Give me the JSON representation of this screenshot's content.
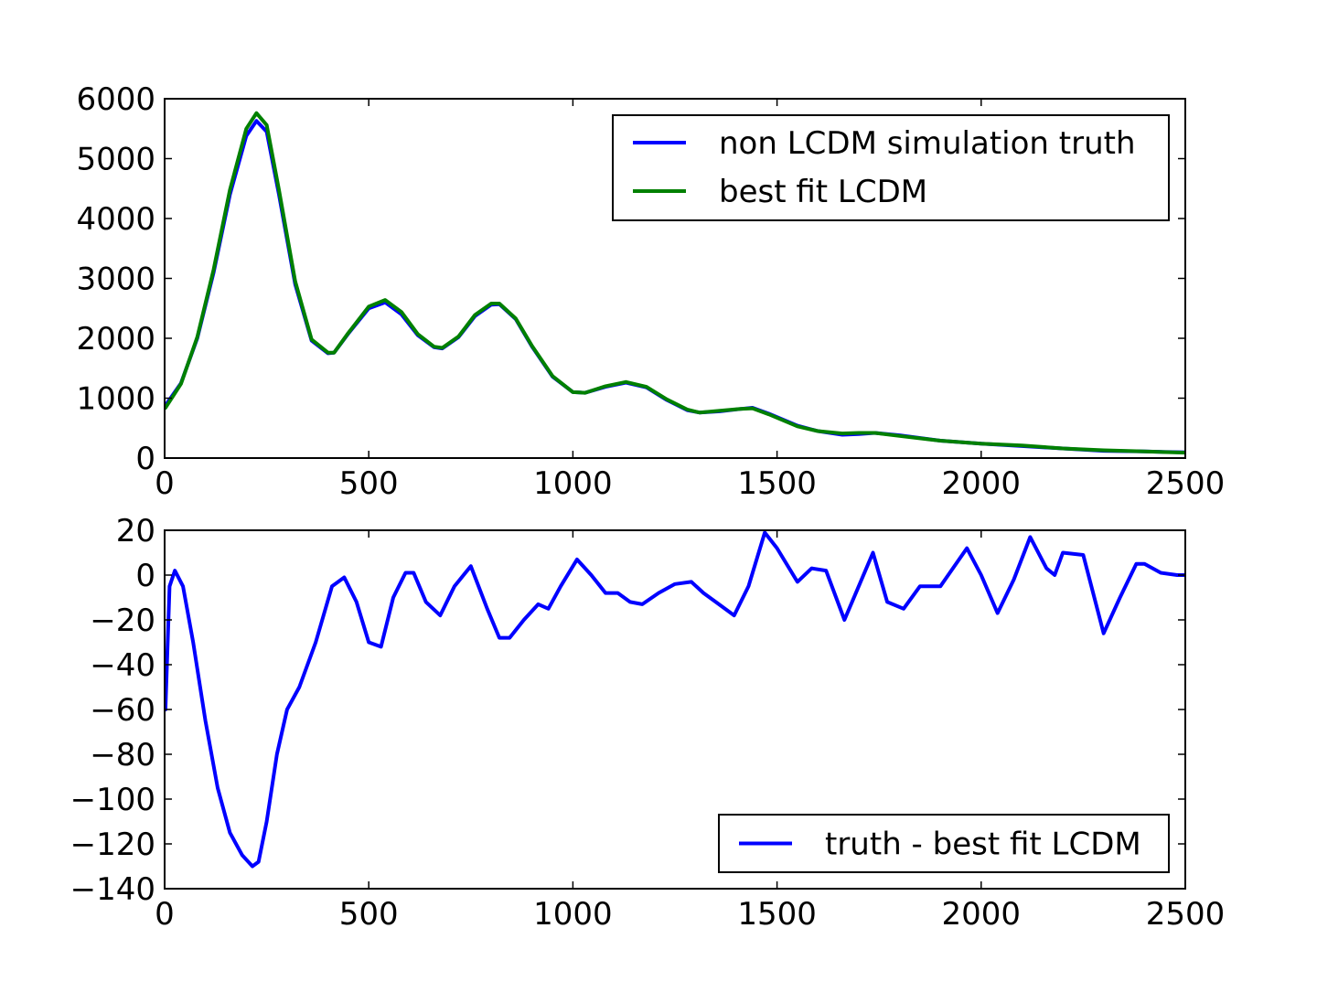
{
  "chart_data": [
    {
      "type": "line",
      "xlim": [
        0,
        2500
      ],
      "ylim": [
        0,
        6000
      ],
      "x_ticks": [
        "0",
        "500",
        "1000",
        "1500",
        "2000",
        "2500"
      ],
      "y_ticks": [
        "0",
        "1000",
        "2000",
        "3000",
        "4000",
        "5000",
        "6000"
      ],
      "grid": false,
      "legend_position": "upper-right",
      "series": [
        {
          "name": "non LCDM simulation truth",
          "color": "#0000ff",
          "x": [
            2,
            40,
            80,
            120,
            160,
            200,
            225,
            250,
            280,
            320,
            360,
            400,
            415,
            450,
            500,
            540,
            580,
            620,
            660,
            680,
            720,
            760,
            800,
            820,
            860,
            900,
            950,
            1000,
            1030,
            1080,
            1130,
            1180,
            1230,
            1280,
            1310,
            1360,
            1410,
            1440,
            1480,
            1550,
            1600,
            1660,
            1700,
            1740,
            1800,
            1900,
            2000,
            2100,
            2200,
            2300,
            2400,
            2500
          ],
          "y": [
            880,
            1250,
            2000,
            3100,
            4400,
            5380,
            5630,
            5450,
            4400,
            2900,
            1960,
            1750,
            1760,
            2080,
            2500,
            2600,
            2400,
            2050,
            1850,
            1830,
            2020,
            2370,
            2560,
            2570,
            2320,
            1860,
            1360,
            1100,
            1090,
            1190,
            1260,
            1180,
            970,
            800,
            760,
            780,
            820,
            840,
            740,
            540,
            450,
            390,
            400,
            420,
            380,
            290,
            240,
            200,
            160,
            120,
            110,
            95
          ]
        },
        {
          "name": "best fit LCDM",
          "color": "#008000",
          "x": [
            2,
            40,
            80,
            120,
            160,
            200,
            225,
            250,
            280,
            320,
            360,
            400,
            415,
            450,
            500,
            540,
            580,
            620,
            660,
            680,
            720,
            760,
            800,
            820,
            860,
            900,
            950,
            1000,
            1030,
            1080,
            1130,
            1180,
            1230,
            1280,
            1310,
            1360,
            1410,
            1440,
            1480,
            1550,
            1600,
            1660,
            1700,
            1740,
            1800,
            1900,
            2000,
            2100,
            2200,
            2300,
            2400,
            2500
          ],
          "y": [
            840,
            1240,
            2020,
            3150,
            4480,
            5500,
            5760,
            5560,
            4480,
            2950,
            1980,
            1760,
            1760,
            2090,
            2530,
            2640,
            2440,
            2070,
            1860,
            1840,
            2030,
            2390,
            2580,
            2580,
            2330,
            1870,
            1370,
            1100,
            1090,
            1200,
            1270,
            1190,
            980,
            810,
            760,
            790,
            820,
            830,
            730,
            530,
            450,
            410,
            420,
            420,
            370,
            290,
            240,
            210,
            160,
            130,
            110,
            90
          ]
        }
      ]
    },
    {
      "type": "line",
      "xlim": [
        0,
        2500
      ],
      "ylim": [
        -140,
        20
      ],
      "x_ticks": [
        "0",
        "500",
        "1000",
        "1500",
        "2000",
        "2500"
      ],
      "y_ticks": [
        "20",
        "0",
        "−20",
        "−40",
        "−60",
        "−80",
        "−100",
        "−120",
        "−140"
      ],
      "grid": false,
      "legend_position": "lower-right",
      "series": [
        {
          "name": "truth - best fit LCDM",
          "color": "#0000ff",
          "x": [
            2,
            12,
            25,
            45,
            70,
            100,
            130,
            160,
            190,
            215,
            230,
            250,
            275,
            300,
            330,
            370,
            410,
            440,
            470,
            500,
            530,
            560,
            590,
            610,
            640,
            675,
            710,
            750,
            790,
            820,
            845,
            880,
            915,
            940,
            970,
            1010,
            1045,
            1080,
            1110,
            1140,
            1170,
            1210,
            1250,
            1290,
            1320,
            1350,
            1395,
            1430,
            1470,
            1500,
            1550,
            1585,
            1620,
            1665,
            1700,
            1735,
            1770,
            1810,
            1850,
            1900,
            1965,
            2000,
            2040,
            2080,
            2120,
            2160,
            2180,
            2200,
            2250,
            2300,
            2340,
            2380,
            2400,
            2440,
            2480,
            2500
          ],
          "y": [
            -60,
            -5,
            2,
            -5,
            -30,
            -65,
            -95,
            -115,
            -125,
            -130,
            -128,
            -110,
            -80,
            -60,
            -50,
            -30,
            -5,
            -1,
            -12,
            -30,
            -32,
            -10,
            1,
            1,
            -12,
            -18,
            -5,
            4,
            -15,
            -28,
            -28,
            -20,
            -13,
            -15,
            -5,
            7,
            0,
            -8,
            -8,
            -12,
            -13,
            -8,
            -4,
            -3,
            -8,
            -12,
            -18,
            -5,
            19,
            12,
            -3,
            3,
            2,
            -20,
            -5,
            10,
            -12,
            -15,
            -5,
            -5,
            12,
            0,
            -17,
            -2,
            17,
            3,
            0,
            10,
            9,
            -26,
            -10,
            5,
            5,
            1,
            0,
            0
          ]
        }
      ]
    }
  ]
}
